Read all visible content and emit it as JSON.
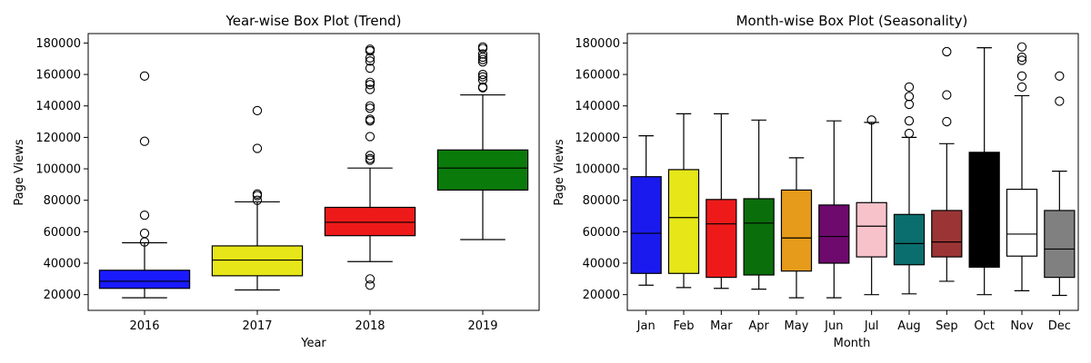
{
  "chart_data": [
    {
      "type": "box",
      "title": "Year-wise Box Plot (Trend)",
      "xlabel": "Year",
      "ylabel": "Page Views",
      "ylim": [
        10000,
        186000
      ],
      "yticks": [
        20000,
        40000,
        60000,
        80000,
        100000,
        120000,
        140000,
        160000,
        180000
      ],
      "grid": false,
      "categories": [
        "2016",
        "2017",
        "2018",
        "2019"
      ],
      "boxes": [
        {
          "category": "2016",
          "color": "#1a1aff",
          "min": 18000,
          "q1": 24000,
          "median": 28500,
          "q3": 35500,
          "max": 53000,
          "outliers": [
            159000,
            117500,
            70500,
            59000,
            53500
          ]
        },
        {
          "category": "2017",
          "color": "#e6e619",
          "min": 23000,
          "q1": 32000,
          "median": 42000,
          "q3": 51000,
          "max": 79000,
          "outliers": [
            137000,
            113000,
            84000,
            83000,
            80000
          ]
        },
        {
          "category": "2018",
          "color": "#ee1a1a",
          "min": 41000,
          "q1": 57500,
          "median": 66000,
          "q3": 75500,
          "max": 100500,
          "outliers": [
            176000,
            175000,
            170500,
            168500,
            164000,
            155000,
            153500,
            150500,
            140000,
            138500,
            131500,
            130500,
            120500,
            108500,
            106500,
            105500,
            30000,
            26000
          ]
        },
        {
          "category": "2019",
          "color": "#0a7a0a",
          "min": 55000,
          "q1": 86500,
          "median": 100500,
          "q3": 112000,
          "max": 147000,
          "outliers": [
            177500,
            176500,
            173000,
            171000,
            169500,
            168000,
            160000,
            158500,
            156500,
            152000,
            151500
          ]
        }
      ]
    },
    {
      "type": "box",
      "title": "Month-wise Box Plot (Seasonality)",
      "xlabel": "Month",
      "ylabel": "Page Views",
      "ylim": [
        10000,
        186000
      ],
      "yticks": [
        20000,
        40000,
        60000,
        80000,
        100000,
        120000,
        140000,
        160000,
        180000
      ],
      "grid": false,
      "categories": [
        "Jan",
        "Feb",
        "Mar",
        "Apr",
        "May",
        "Jun",
        "Jul",
        "Aug",
        "Sep",
        "Oct",
        "Nov",
        "Dec"
      ],
      "boxes": [
        {
          "category": "Jan",
          "color": "#1a1aee",
          "min": 26000,
          "q1": 33500,
          "median": 59000,
          "q3": 95000,
          "max": 121000,
          "outliers": []
        },
        {
          "category": "Feb",
          "color": "#e6e619",
          "min": 24500,
          "q1": 33500,
          "median": 69000,
          "q3": 99500,
          "max": 135000,
          "outliers": []
        },
        {
          "category": "Mar",
          "color": "#ee1a1a",
          "min": 24000,
          "q1": 31000,
          "median": 65000,
          "q3": 80500,
          "max": 135000,
          "outliers": []
        },
        {
          "category": "Apr",
          "color": "#0a6e0a",
          "min": 23500,
          "q1": 32500,
          "median": 65500,
          "q3": 81000,
          "max": 131000,
          "outliers": []
        },
        {
          "category": "May",
          "color": "#e69b1a",
          "min": 18000,
          "q1": 35000,
          "median": 56000,
          "q3": 86500,
          "max": 107000,
          "outliers": []
        },
        {
          "category": "Jun",
          "color": "#6e0a6e",
          "min": 18000,
          "q1": 40000,
          "median": 57000,
          "q3": 77000,
          "max": 130500,
          "outliers": []
        },
        {
          "category": "Jul",
          "color": "#f8c2cb",
          "min": 20000,
          "q1": 44000,
          "median": 63500,
          "q3": 78500,
          "max": 129500,
          "outliers": [
            131000
          ]
        },
        {
          "category": "Aug",
          "color": "#0a6e6e",
          "min": 20500,
          "q1": 39000,
          "median": 52500,
          "q3": 71000,
          "max": 120000,
          "outliers": [
            152000,
            146000,
            141000,
            130500,
            122500
          ]
        },
        {
          "category": "Sep",
          "color": "#9b3535",
          "min": 28500,
          "q1": 44000,
          "median": 53500,
          "q3": 73500,
          "max": 116000,
          "outliers": [
            174500,
            147000,
            130000
          ]
        },
        {
          "category": "Oct",
          "color": "#000000",
          "min": 20000,
          "q1": 37500,
          "median": 37500,
          "q3": 110500,
          "max": 177000,
          "outliers": []
        },
        {
          "category": "Nov",
          "color": "#ffffff",
          "min": 22500,
          "q1": 44500,
          "median": 58500,
          "q3": 87000,
          "max": 146500,
          "outliers": [
            177500,
            171000,
            169000,
            159000,
            152000
          ]
        },
        {
          "category": "Dec",
          "color": "#808080",
          "min": 19500,
          "q1": 31000,
          "median": 49000,
          "q3": 73500,
          "max": 98500,
          "outliers": [
            159000,
            143000
          ]
        }
      ]
    }
  ]
}
